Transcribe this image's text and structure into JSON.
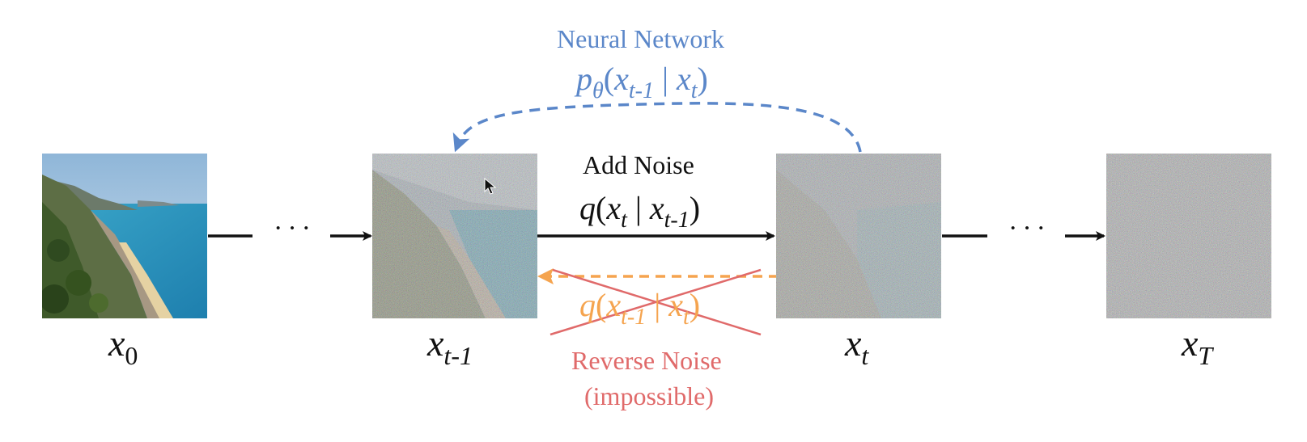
{
  "states": {
    "x0": {
      "base": "x",
      "sub": "0"
    },
    "xtm1": {
      "base": "x",
      "sub": "t-1"
    },
    "xt": {
      "base": "x",
      "sub": "t"
    },
    "xT": {
      "base": "x",
      "sub": "T"
    }
  },
  "ellipsis": "···",
  "forward": {
    "title": "Add Noise",
    "fn": "q",
    "arg_base": "x",
    "arg_sub": "t",
    "sep": "|",
    "given_base": "x",
    "given_sub": "t-1"
  },
  "network": {
    "title": "Neural Network",
    "fn": "p",
    "fn_sub": "θ",
    "arg_base": "x",
    "arg_sub": "t-1",
    "sep": "|",
    "given_base": "x",
    "given_sub": "t"
  },
  "reverse": {
    "fn": "q",
    "arg_base": "x",
    "arg_sub": "t-1",
    "sep": "|",
    "given_base": "x",
    "given_sub": "t",
    "title": "Reverse Noise",
    "note": "(impossible)"
  },
  "colors": {
    "black": "#111111",
    "network_blue": "#5b87c9",
    "reverse_orange": "#f5a44f",
    "cross_red": "#e06a6a"
  },
  "images": [
    {
      "name": "clean-coastline",
      "noise_level": 0
    },
    {
      "name": "slightly-noisy-coastline",
      "noise_level": 0.55
    },
    {
      "name": "noisy-coastline",
      "noise_level": 0.8
    },
    {
      "name": "pure-noise",
      "noise_level": 1
    }
  ]
}
